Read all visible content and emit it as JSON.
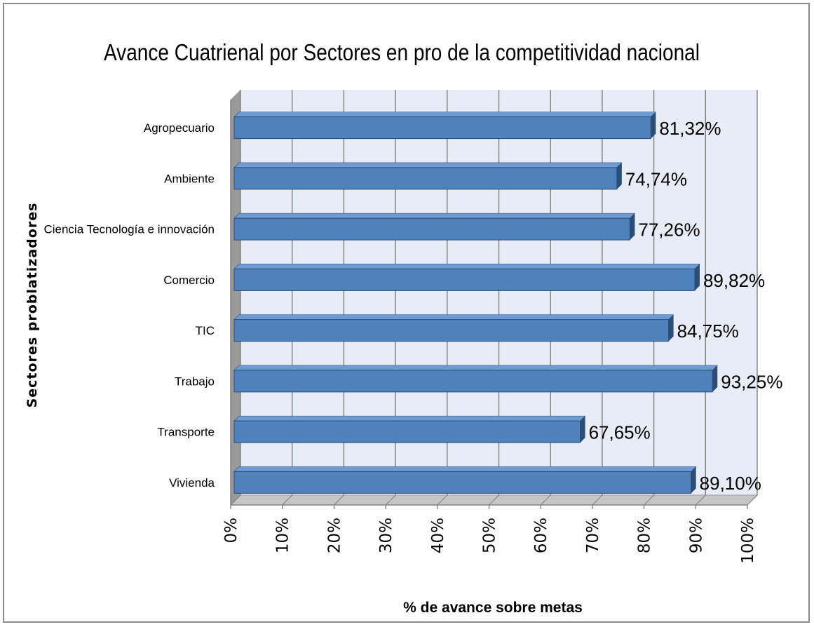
{
  "colors": {
    "bar_front": "#4f81bd",
    "bar_top": "#6f9bd4",
    "bar_side": "#2c4d75",
    "plot_back": "#e8ecf6",
    "plot_floor": "#c6c6c6",
    "grid": "#7f7f7f"
  },
  "chart_data": {
    "type": "bar",
    "orientation": "horizontal",
    "style": "3d",
    "title": "Avance Cuatrienal por Sectores en pro de la competitividad nacional",
    "xlabel": "% de avance sobre metas",
    "ylabel": "Sectores problatizadores",
    "xlim": [
      0,
      100
    ],
    "x_ticks": [
      "0%",
      "10%",
      "20%",
      "30%",
      "40%",
      "50%",
      "60%",
      "70%",
      "80%",
      "90%",
      "100%"
    ],
    "grid": true,
    "categories": [
      "Agropecuario",
      "Ambiente",
      "Ciencia Tecnología e innovación",
      "Comercio",
      "TIC",
      "Trabajo",
      "Transporte",
      "Vivienda"
    ],
    "values": [
      81.32,
      74.74,
      77.26,
      89.82,
      84.75,
      93.25,
      67.65,
      89.1
    ],
    "data_labels": [
      "81,32%",
      "74,74%",
      "77,26%",
      "89,82%",
      "84,75%",
      "93,25%",
      "67,65%",
      "89,10%"
    ]
  }
}
